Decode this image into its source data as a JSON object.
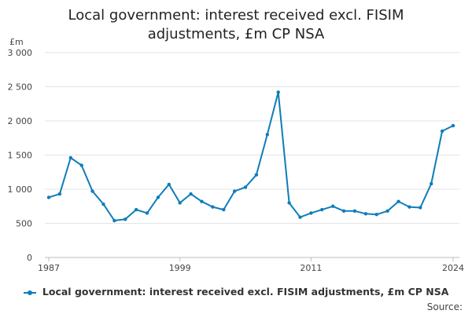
{
  "chart_data": {
    "type": "line",
    "title_line1": "Local government: interest received excl. FISIM",
    "title_line2": "adjustments, £m CP NSA",
    "ylabel": "£m",
    "ylim": [
      0,
      3000
    ],
    "y_ticks": [
      0,
      500,
      1000,
      1500,
      2000,
      2500,
      3000
    ],
    "y_tick_labels": [
      "0",
      "500",
      "1 000",
      "1 500",
      "2 000",
      "2 500",
      "3 000"
    ],
    "x_ticks": [
      1987,
      1999,
      2011,
      2024
    ],
    "x_tick_labels": [
      "1987",
      "1999",
      "2011",
      "2024"
    ],
    "xlim": [
      1987,
      2024
    ],
    "grid": true,
    "legend_position": "bottom",
    "series_color": "#0e7db8",
    "series": [
      {
        "name": "Local government: interest received excl. FISIM adjustments, £m CP NSA",
        "x": [
          1987,
          1988,
          1989,
          1990,
          1991,
          1992,
          1993,
          1994,
          1995,
          1996,
          1997,
          1998,
          1999,
          2000,
          2001,
          2002,
          2003,
          2004,
          2005,
          2006,
          2007,
          2008,
          2009,
          2010,
          2011,
          2012,
          2013,
          2014,
          2015,
          2016,
          2017,
          2018,
          2019,
          2020,
          2021,
          2022,
          2023,
          2024
        ],
        "values": [
          880,
          930,
          1460,
          1350,
          970,
          780,
          540,
          560,
          700,
          650,
          880,
          1070,
          800,
          930,
          820,
          740,
          700,
          970,
          1030,
          1210,
          1800,
          2420,
          800,
          590,
          650,
          700,
          750,
          680,
          680,
          640,
          630,
          680,
          820,
          740,
          730,
          1080,
          1850,
          1930
        ]
      }
    ],
    "source_label": "Source:"
  }
}
